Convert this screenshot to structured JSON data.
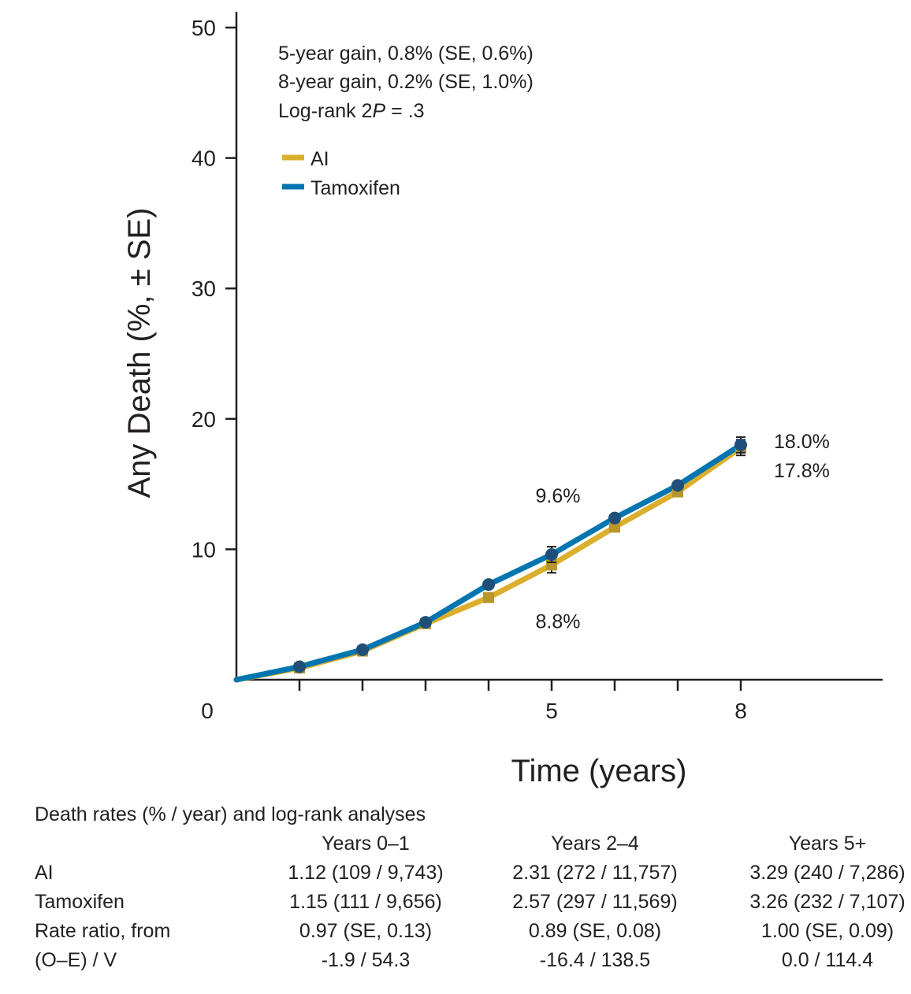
{
  "chart_data": {
    "type": "line",
    "ylabel": "Any Death (%, ± SE)",
    "xlabel": "Time (years)",
    "ylim": [
      0,
      50
    ],
    "xlim": [
      0,
      10
    ],
    "yticks": [
      10,
      20,
      30,
      40,
      50
    ],
    "x_tick_positions": [
      1,
      2,
      3,
      4,
      5,
      6,
      7,
      8
    ],
    "x_tick_labels": [
      {
        "x": 5,
        "label": "5"
      },
      {
        "x": 8,
        "label": "8"
      }
    ],
    "origin_label": "0",
    "grid": false,
    "legend_placement": "top-left",
    "annotations": {
      "line1": "5-year gain, 0.8% (SE, 0.6%)",
      "line2": "8-year gain, 0.2% (SE, 1.0%)",
      "line3_prefix": "Log-rank 2",
      "line3_italic": "P",
      "line3_suffix": " = .3"
    },
    "series": [
      {
        "name": "AI",
        "color": "#dbaf2e",
        "marker_color": "#b8962c",
        "marker": "square",
        "x": [
          0,
          1,
          2,
          3,
          4,
          5,
          6,
          7,
          8
        ],
        "values": [
          0,
          0.9,
          2.2,
          4.3,
          6.3,
          8.8,
          11.7,
          14.4,
          17.8
        ],
        "se": {
          "5": 0.6,
          "8": 0.6
        }
      },
      {
        "name": "Tamoxifen",
        "color": "#0075b0",
        "marker_color": "#1f4e79",
        "marker": "circle",
        "x": [
          0,
          1,
          2,
          3,
          4,
          5,
          6,
          7,
          8
        ],
        "values": [
          0,
          1.0,
          2.3,
          4.4,
          7.3,
          9.6,
          12.4,
          14.9,
          18.0
        ],
        "se": {
          "5": 0.6,
          "8": 0.6
        }
      }
    ],
    "point_labels": [
      {
        "series": "Tamoxifen",
        "x": 5,
        "text": "9.6%",
        "position": "above"
      },
      {
        "series": "AI",
        "x": 5,
        "text": "8.8%",
        "position": "below"
      },
      {
        "series": "Tamoxifen",
        "x": 8,
        "text": "18.0%",
        "position": "right-upper"
      },
      {
        "series": "AI",
        "x": 8,
        "text": "17.8%",
        "position": "right-lower"
      }
    ]
  },
  "table": {
    "title": "Death rates (% / year) and log-rank analyses",
    "columns": [
      "Years 0–1",
      "Years 2–4",
      "Years 5+"
    ],
    "rows": [
      {
        "label": "AI",
        "values": [
          "1.12 (109 / 9,743)",
          "2.31 (272 / 11,757)",
          "3.29 (240 / 7,286)"
        ]
      },
      {
        "label": "Tamoxifen",
        "values": [
          "1.15 (111 / 9,656)",
          "2.57 (297 / 11,569)",
          "3.26 (232 / 7,107)"
        ]
      },
      {
        "label": "Rate ratio, from",
        "values": [
          "0.97 (SE, 0.13)",
          "0.89 (SE, 0.08)",
          "1.00 (SE, 0.09)"
        ]
      },
      {
        "label": "(O–E) / V",
        "values": [
          "-1.9 / 54.3",
          "-16.4 / 138.5",
          "0.0 / 114.4"
        ]
      }
    ]
  }
}
